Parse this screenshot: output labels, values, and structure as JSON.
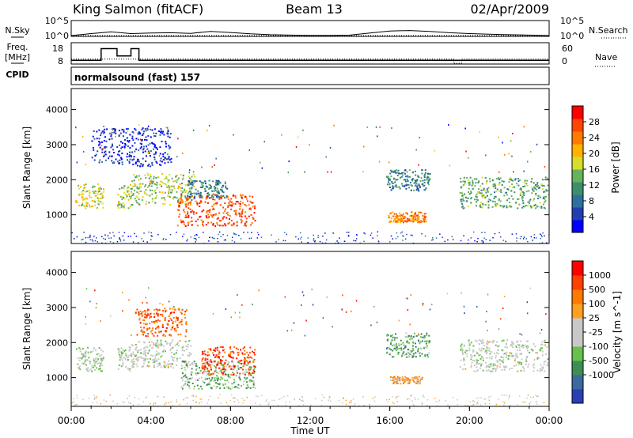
{
  "header": {
    "site": "King Salmon (fitACF)",
    "beam": "Beam 13",
    "date": "02/Apr/2009"
  },
  "labels": {
    "nsky": "N.Sky",
    "freq_line1": "Freq.",
    "freq_line2": "[MHz]",
    "cpid": "CPID",
    "nsearch": "N.Search",
    "nave": "Nave",
    "program": "normalsound (fast) 157"
  },
  "noise_axis_ticks": [
    "10^5",
    "10^0"
  ],
  "freq_axis_ticks": [
    "18",
    "8"
  ],
  "nave_axis_ticks": [
    "60",
    "0"
  ],
  "colors": {
    "power": [
      "#0000ff",
      "#1f3fb0",
      "#2e6fa0",
      "#3d8f6c",
      "#66b35a",
      "#d8dc2a",
      "#ffb200",
      "#ff7a00",
      "#ff4500",
      "#ff0000"
    ],
    "velocity": [
      "#2a3fb4",
      "#3a6aa0",
      "#3e8d55",
      "#66c24a",
      "#c8c8c8",
      "#c8c8c8",
      "#ffa020",
      "#ff7a00",
      "#ff4000",
      "#ff0000"
    ]
  },
  "chart_data": [
    {
      "type": "line",
      "panel": "noise",
      "series": [
        {
          "name": "N.Sky",
          "x": [
            0,
            1,
            2,
            3,
            4,
            5,
            6,
            7,
            8,
            9,
            10,
            11,
            12,
            13,
            14,
            15,
            16,
            17,
            18,
            19,
            20,
            21,
            22,
            23,
            24
          ],
          "values": [
            1,
            5,
            20,
            5,
            8,
            10,
            6,
            30,
            12,
            4,
            2,
            1.5,
            1.2,
            1.2,
            1.5,
            8,
            40,
            60,
            30,
            10,
            5,
            3,
            2,
            1.5,
            1
          ]
        },
        {
          "name": "N.Search",
          "x": [
            0,
            24
          ],
          "values": [
            1,
            1
          ]
        }
      ]
    },
    {
      "type": "line",
      "panel": "frequency",
      "series": [
        {
          "name": "Freq.",
          "x": [
            0,
            1.5,
            1.5,
            2.3,
            2.3,
            3.0,
            3.0,
            3.4,
            3.4,
            24
          ],
          "values": [
            8,
            8,
            16,
            16,
            11,
            11,
            16,
            16,
            8,
            8
          ]
        },
        {
          "name": "Nave",
          "x": [
            0,
            19.2,
            19.2,
            19.6,
            19.6,
            24
          ],
          "values": [
            13,
            13,
            0,
            0,
            13,
            13
          ]
        }
      ]
    },
    {
      "type": "heatmap",
      "panel": "power",
      "xlabel": "",
      "ylabel": "Slant Range [km]",
      "colorbar_label": "Power [dB]",
      "colorbar_ticks": [
        4,
        8,
        12,
        16,
        20,
        24,
        28
      ],
      "ylim": [
        180,
        4600
      ],
      "yticks": [
        1000,
        2000,
        3000,
        4000
      ],
      "xlim": [
        0,
        24
      ],
      "regions": [
        {
          "t0": 0.2,
          "t1": 1.6,
          "r0": 1200,
          "r1": 1900,
          "level": 0.55
        },
        {
          "t0": 2.3,
          "t1": 3.0,
          "r0": 1200,
          "r1": 1900,
          "level": 0.5
        },
        {
          "t0": 3.0,
          "t1": 6.2,
          "r0": 1300,
          "r1": 2200,
          "level": 0.5
        },
        {
          "t0": 5.3,
          "t1": 9.2,
          "r0": 700,
          "r1": 1600,
          "level": 0.85
        },
        {
          "t0": 5.8,
          "t1": 7.8,
          "r0": 1500,
          "r1": 2000,
          "level": 0.3
        },
        {
          "t0": 1.0,
          "t1": 5.0,
          "r0": 2400,
          "r1": 3500,
          "level": 0.1
        },
        {
          "t0": 15.8,
          "t1": 18.0,
          "r0": 1700,
          "r1": 2300,
          "level": 0.3
        },
        {
          "t0": 15.9,
          "t1": 17.8,
          "r0": 800,
          "r1": 1100,
          "level": 0.75
        },
        {
          "t0": 19.5,
          "t1": 24.0,
          "r0": 1200,
          "r1": 2100,
          "level": 0.4
        }
      ]
    },
    {
      "type": "heatmap",
      "panel": "velocity",
      "xlabel": "Time UT",
      "ylabel": "Slant Range [km]",
      "colorbar_label": "Velocity [m s^-1]",
      "colorbar_ticks": [
        1000,
        500,
        100,
        25,
        -25,
        -100,
        -500,
        -1000
      ],
      "ylim": [
        180,
        4600
      ],
      "yticks": [
        1000,
        2000,
        3000,
        4000
      ],
      "xlim": [
        0,
        24
      ],
      "xticks": [
        "00:00",
        "04:00",
        "08:00",
        "12:00",
        "16:00",
        "20:00",
        "00:00"
      ],
      "regions": [
        {
          "t0": 0.2,
          "t1": 1.6,
          "r0": 1200,
          "r1": 1900,
          "level": 0.45
        },
        {
          "t0": 2.3,
          "t1": 3.0,
          "r0": 1200,
          "r1": 1900,
          "level": 0.45
        },
        {
          "t0": 3.0,
          "t1": 6.0,
          "r0": 1300,
          "r1": 2100,
          "level": 0.48
        },
        {
          "t0": 3.2,
          "t1": 5.8,
          "r0": 2200,
          "r1": 3000,
          "level": 0.78
        },
        {
          "t0": 5.5,
          "t1": 9.2,
          "r0": 700,
          "r1": 1500,
          "level": 0.35
        },
        {
          "t0": 6.5,
          "t1": 9.2,
          "r0": 1100,
          "r1": 1900,
          "level": 0.85
        },
        {
          "t0": 15.8,
          "t1": 18.0,
          "r0": 1600,
          "r1": 2300,
          "level": 0.3
        },
        {
          "t0": 16.0,
          "t1": 17.6,
          "r0": 850,
          "r1": 1050,
          "level": 0.65
        },
        {
          "t0": 19.5,
          "t1": 24.0,
          "r0": 1200,
          "r1": 2100,
          "level": 0.47
        }
      ]
    }
  ]
}
